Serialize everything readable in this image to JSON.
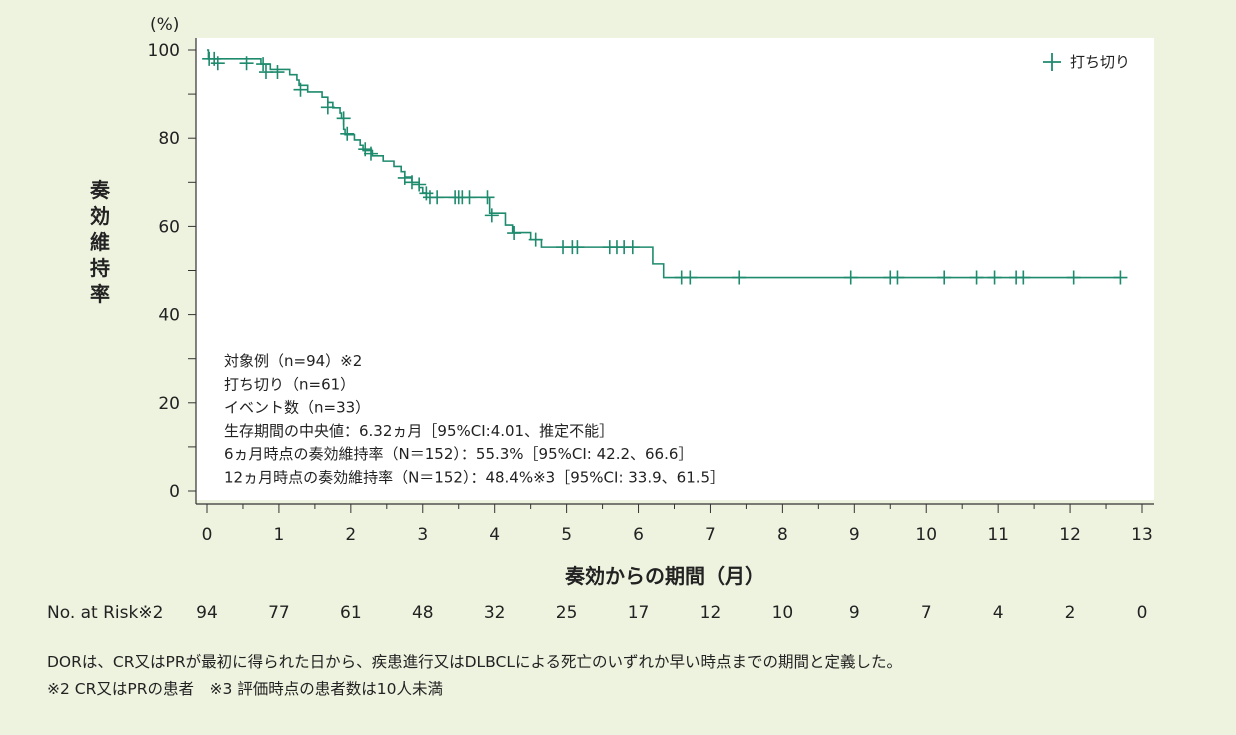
{
  "chart_data": {
    "type": "line",
    "step": true,
    "yunit": "(%)",
    "ylabel": "奏効維持率",
    "xlabel": "奏効からの期間（月）",
    "xlim": [
      0,
      13
    ],
    "ylim": [
      0,
      100
    ],
    "xticks": [
      0,
      1,
      2,
      3,
      4,
      5,
      6,
      7,
      8,
      9,
      10,
      11,
      12,
      13
    ],
    "yticks": [
      0,
      20,
      40,
      60,
      80,
      100
    ],
    "grid": false,
    "legend": {
      "label": "打ち切り",
      "position": "top-right"
    },
    "series": [
      {
        "color": "#1e8a6e",
        "steps": [
          [
            0,
            100
          ],
          [
            0.02,
            98.0
          ],
          [
            0.75,
            96.8
          ],
          [
            0.88,
            95.6
          ],
          [
            1.15,
            94.4
          ],
          [
            1.25,
            93.2
          ],
          [
            1.28,
            92.0
          ],
          [
            1.4,
            90.5
          ],
          [
            1.6,
            89.3
          ],
          [
            1.68,
            88.1
          ],
          [
            1.75,
            86.9
          ],
          [
            1.85,
            85.7
          ],
          [
            1.87,
            84.5
          ],
          [
            1.9,
            82.0
          ],
          [
            1.92,
            80.8
          ],
          [
            2.05,
            79.6
          ],
          [
            2.13,
            78.4
          ],
          [
            2.17,
            77.2
          ],
          [
            2.3,
            76.0
          ],
          [
            2.45,
            74.8
          ],
          [
            2.6,
            73.6
          ],
          [
            2.7,
            72.4
          ],
          [
            2.75,
            71.2
          ],
          [
            2.85,
            70.0
          ],
          [
            2.95,
            68.8
          ],
          [
            3.0,
            67.6
          ],
          [
            3.05,
            66.6
          ],
          [
            3.93,
            63.0
          ],
          [
            4.15,
            60.3
          ],
          [
            4.25,
            58.6
          ],
          [
            4.5,
            57.0
          ],
          [
            4.65,
            55.3
          ],
          [
            6.2,
            51.5
          ],
          [
            6.35,
            48.4
          ]
        ],
        "end_x": 12.7,
        "censor": [
          [
            0.03,
            98.0
          ],
          [
            0.1,
            98.0
          ],
          [
            0.15,
            97.0
          ],
          [
            0.55,
            97.0
          ],
          [
            0.78,
            96.8
          ],
          [
            0.82,
            95.0
          ],
          [
            0.98,
            95.0
          ],
          [
            1.3,
            91.0
          ],
          [
            1.68,
            87.0
          ],
          [
            1.9,
            84.5
          ],
          [
            1.95,
            81.0
          ],
          [
            2.2,
            77.5
          ],
          [
            2.28,
            76.5
          ],
          [
            2.75,
            71.0
          ],
          [
            2.85,
            70.0
          ],
          [
            2.95,
            69.5
          ],
          [
            3.05,
            67.5
          ],
          [
            3.1,
            66.6
          ],
          [
            3.2,
            66.6
          ],
          [
            3.45,
            66.6
          ],
          [
            3.5,
            66.6
          ],
          [
            3.55,
            66.6
          ],
          [
            3.65,
            66.6
          ],
          [
            3.9,
            66.6
          ],
          [
            3.96,
            62.5
          ],
          [
            4.27,
            58.5
          ],
          [
            4.57,
            57.0
          ],
          [
            4.95,
            55.3
          ],
          [
            5.08,
            55.3
          ],
          [
            5.15,
            55.3
          ],
          [
            5.6,
            55.3
          ],
          [
            5.7,
            55.3
          ],
          [
            5.8,
            55.3
          ],
          [
            5.92,
            55.3
          ],
          [
            6.6,
            48.4
          ],
          [
            6.72,
            48.4
          ],
          [
            7.4,
            48.4
          ],
          [
            8.95,
            48.4
          ],
          [
            9.5,
            48.4
          ],
          [
            9.6,
            48.4
          ],
          [
            10.25,
            48.4
          ],
          [
            10.7,
            48.4
          ],
          [
            10.95,
            48.4
          ],
          [
            11.25,
            48.4
          ],
          [
            11.35,
            48.4
          ],
          [
            12.05,
            48.4
          ],
          [
            12.7,
            48.4
          ]
        ]
      }
    ],
    "info_lines": [
      "対象例（n=94）※2",
      "打ち切り（n=61）",
      "イベント数（n=33）",
      "生存期間の中央値：6.32ヵ月［95%CI:4.01、推定不能］",
      "6ヵ月時点の奏効維持率（N＝152）：55.3%［95%CI: 42.2、66.6］",
      "12ヵ月時点の奏効維持率（N＝152）：48.4%※3［95%CI: 33.9、61.5］"
    ],
    "risk_label": "No. at Risk※2",
    "at_risk": [
      94,
      77,
      61,
      48,
      32,
      25,
      17,
      12,
      10,
      9,
      7,
      4,
      2,
      0
    ]
  },
  "footnotes": [
    "DORは、CR又はPRが最初に得られた日から、疾患進行又はDLBCLによる死亡のいずれか早い時点までの期間と定義した。",
    "※2 CR又はPRの患者　※3 評価時点の患者数は10人未満"
  ],
  "colors": {
    "line": "#1e8a6e",
    "plot_bg": "#ffffff",
    "page_bg": "#eef3df",
    "axis": "#333333"
  }
}
